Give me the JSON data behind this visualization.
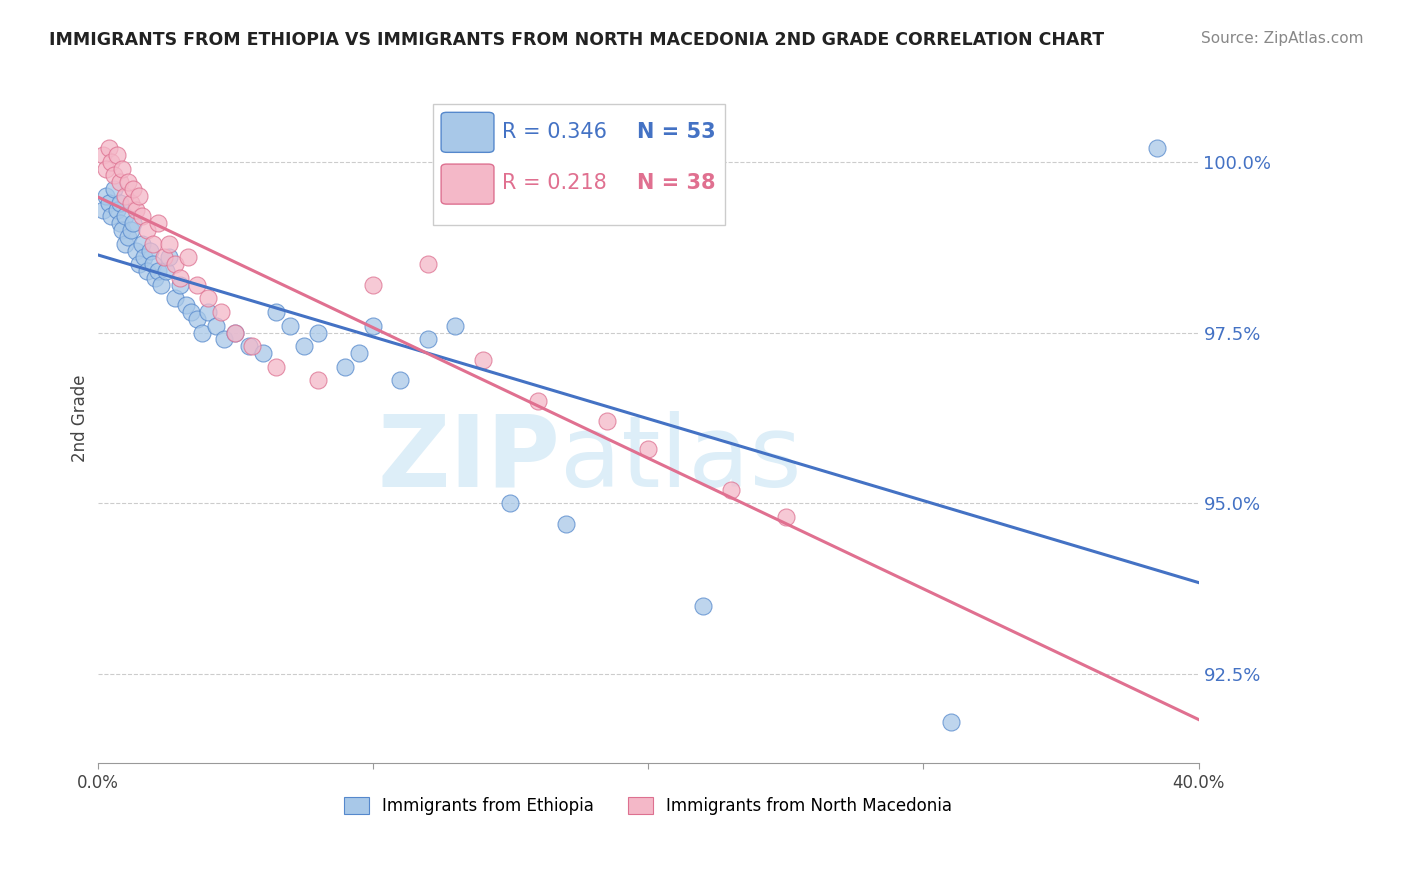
{
  "title": "IMMIGRANTS FROM ETHIOPIA VS IMMIGRANTS FROM NORTH MACEDONIA 2ND GRADE CORRELATION CHART",
  "source": "Source: ZipAtlas.com",
  "ylabel": "2nd Grade",
  "yticks": [
    92.5,
    95.0,
    97.5,
    100.0
  ],
  "ytick_labels": [
    "92.5%",
    "95.0%",
    "97.5%",
    "100.0%"
  ],
  "xmin": 0.0,
  "xmax": 0.4,
  "ymin": 91.2,
  "ymax": 101.3,
  "legend_blue_r": "R = 0.346",
  "legend_blue_n": "N = 53",
  "legend_pink_r": "R = 0.218",
  "legend_pink_n": "N = 38",
  "legend_label_blue": "Immigrants from Ethiopia",
  "legend_label_pink": "Immigrants from North Macedonia",
  "blue_scatter_x": [
    0.002,
    0.003,
    0.004,
    0.005,
    0.006,
    0.007,
    0.008,
    0.008,
    0.009,
    0.01,
    0.01,
    0.011,
    0.012,
    0.013,
    0.014,
    0.015,
    0.016,
    0.017,
    0.018,
    0.019,
    0.02,
    0.021,
    0.022,
    0.023,
    0.025,
    0.026,
    0.028,
    0.03,
    0.032,
    0.034,
    0.036,
    0.038,
    0.04,
    0.043,
    0.046,
    0.05,
    0.055,
    0.06,
    0.065,
    0.07,
    0.075,
    0.08,
    0.09,
    0.095,
    0.1,
    0.11,
    0.12,
    0.13,
    0.15,
    0.17,
    0.22,
    0.31,
    0.385
  ],
  "blue_scatter_y": [
    99.3,
    99.5,
    99.4,
    99.2,
    99.6,
    99.3,
    99.1,
    99.4,
    99.0,
    98.8,
    99.2,
    98.9,
    99.0,
    99.1,
    98.7,
    98.5,
    98.8,
    98.6,
    98.4,
    98.7,
    98.5,
    98.3,
    98.4,
    98.2,
    98.4,
    98.6,
    98.0,
    98.2,
    97.9,
    97.8,
    97.7,
    97.5,
    97.8,
    97.6,
    97.4,
    97.5,
    97.3,
    97.2,
    97.8,
    97.6,
    97.3,
    97.5,
    97.0,
    97.2,
    97.6,
    96.8,
    97.4,
    97.6,
    95.0,
    94.7,
    93.5,
    91.8,
    100.2
  ],
  "pink_scatter_x": [
    0.002,
    0.003,
    0.004,
    0.005,
    0.006,
    0.007,
    0.008,
    0.009,
    0.01,
    0.011,
    0.012,
    0.013,
    0.014,
    0.015,
    0.016,
    0.018,
    0.02,
    0.022,
    0.024,
    0.026,
    0.028,
    0.03,
    0.033,
    0.036,
    0.04,
    0.045,
    0.05,
    0.056,
    0.065,
    0.08,
    0.1,
    0.12,
    0.14,
    0.16,
    0.185,
    0.2,
    0.23,
    0.25
  ],
  "pink_scatter_y": [
    100.1,
    99.9,
    100.2,
    100.0,
    99.8,
    100.1,
    99.7,
    99.9,
    99.5,
    99.7,
    99.4,
    99.6,
    99.3,
    99.5,
    99.2,
    99.0,
    98.8,
    99.1,
    98.6,
    98.8,
    98.5,
    98.3,
    98.6,
    98.2,
    98.0,
    97.8,
    97.5,
    97.3,
    97.0,
    96.8,
    98.2,
    98.5,
    97.1,
    96.5,
    96.2,
    95.8,
    95.2,
    94.8
  ],
  "blue_color": "#a8c8e8",
  "pink_color": "#f4b8c8",
  "blue_edge_color": "#5588cc",
  "pink_edge_color": "#dd7090",
  "blue_line_color": "#4472c4",
  "pink_line_color": "#e07090",
  "watermark_zip": "ZIP",
  "watermark_atlas": "atlas",
  "watermark_color": "#ddeef8"
}
